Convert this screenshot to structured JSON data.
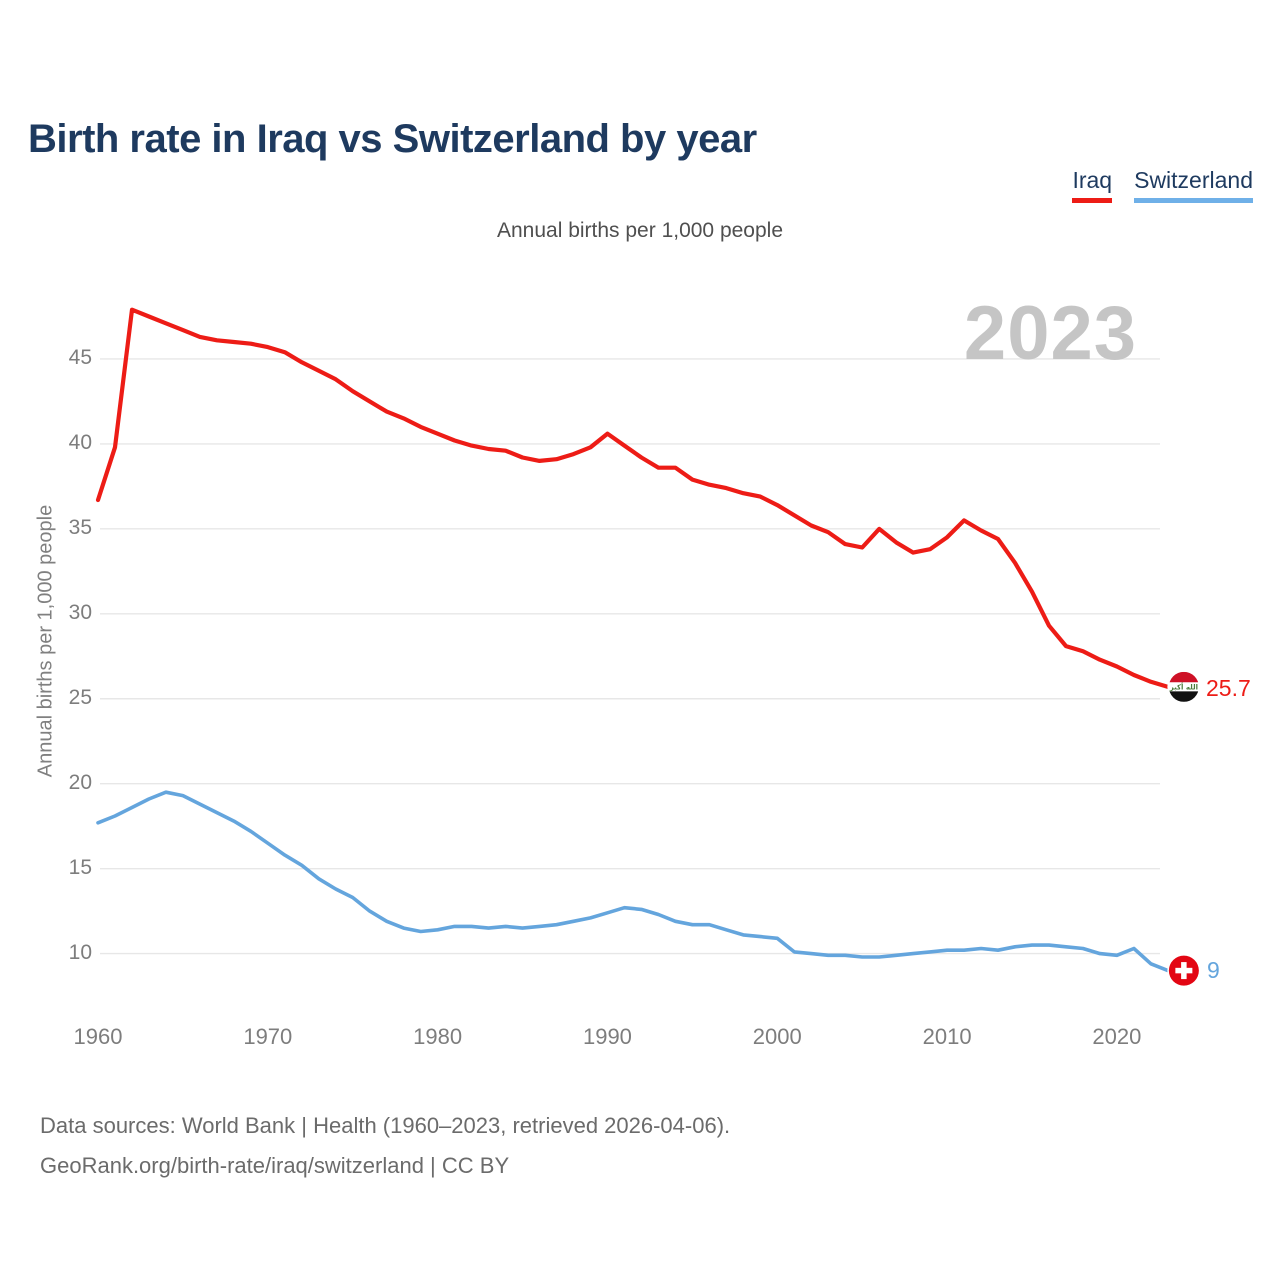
{
  "title": "Birth rate in Iraq vs Switzerland by year",
  "subtitle": "Annual births per 1,000 people",
  "watermark": "2023",
  "y_axis_label": "Annual births per 1,000 people",
  "legend": {
    "items": [
      {
        "label": "Iraq",
        "color": "#ed1c16"
      },
      {
        "label": "Switzerland",
        "color": "#6fb0e8"
      }
    ]
  },
  "footer": {
    "line1": "Data sources: World Bank | Health (1960–2023, retrieved 2026-04-06).",
    "line2": "GeoRank.org/birth-rate/iraq/switzerland | CC BY"
  },
  "colors": {
    "iraq_line": "#ed1c16",
    "switzerland_line": "#64a5dd",
    "grid": "#e7e7e7",
    "title_text": "#1e3a5f",
    "tick_text": "#7d7d7d",
    "watermark_text": "#c5c5c5",
    "iraq_flag_red": "#ce1126",
    "iraq_flag_black": "#111111",
    "iraq_flag_script_green": "#4a7a3a",
    "swiss_flag_red": "#e30613"
  },
  "flag_icons": {
    "iraq_script": "الله أكبر",
    "swiss_cross": "+"
  },
  "chart_data": {
    "type": "line",
    "title": "Birth rate in Iraq vs Switzerland by year",
    "subtitle_note": "Annual births per 1,000 people",
    "ylabel": "Annual births per 1,000 people",
    "grid": true,
    "legend_position": "top-right",
    "xlim": [
      1960,
      2023
    ],
    "ylim": [
      8.5,
      48.5
    ],
    "yticks": [
      10,
      15,
      20,
      25,
      30,
      35,
      40,
      45
    ],
    "xticks": [
      1960,
      1970,
      1980,
      1990,
      2000,
      2010,
      2020
    ],
    "x": [
      1960,
      1961,
      1962,
      1963,
      1964,
      1965,
      1966,
      1967,
      1968,
      1969,
      1970,
      1971,
      1972,
      1973,
      1974,
      1975,
      1976,
      1977,
      1978,
      1979,
      1980,
      1981,
      1982,
      1983,
      1984,
      1985,
      1986,
      1987,
      1988,
      1989,
      1990,
      1991,
      1992,
      1993,
      1994,
      1995,
      1996,
      1997,
      1998,
      1999,
      2000,
      2001,
      2002,
      2003,
      2004,
      2005,
      2006,
      2007,
      2008,
      2009,
      2010,
      2011,
      2012,
      2013,
      2014,
      2015,
      2016,
      2017,
      2018,
      2019,
      2020,
      2021,
      2022,
      2023
    ],
    "series": [
      {
        "name": "Iraq",
        "color": "#ed1c16",
        "stroke_width": 4.2,
        "end_label": "25.7",
        "end_flag": "iraq",
        "values": [
          36.7,
          39.8,
          47.9,
          47.5,
          47.1,
          46.7,
          46.3,
          46.1,
          46.0,
          45.9,
          45.7,
          45.4,
          44.8,
          44.3,
          43.8,
          43.1,
          42.5,
          41.9,
          41.5,
          41.0,
          40.6,
          40.2,
          39.9,
          39.7,
          39.6,
          39.2,
          39.0,
          39.1,
          39.4,
          39.8,
          40.6,
          39.9,
          39.2,
          38.6,
          38.6,
          37.9,
          37.6,
          37.4,
          37.1,
          36.9,
          36.4,
          35.8,
          35.2,
          34.8,
          34.1,
          33.9,
          35.0,
          34.2,
          33.6,
          33.8,
          34.5,
          35.5,
          34.9,
          34.4,
          33.0,
          31.3,
          29.3,
          28.1,
          27.8,
          27.3,
          26.9,
          26.4,
          26.0,
          25.7
        ]
      },
      {
        "name": "Switzerland",
        "color": "#64a5dd",
        "stroke_width": 3.6,
        "end_label": "9",
        "end_flag": "switzerland",
        "values": [
          17.7,
          18.1,
          18.6,
          19.1,
          19.5,
          19.3,
          18.8,
          18.3,
          17.8,
          17.2,
          16.5,
          15.8,
          15.2,
          14.4,
          13.8,
          13.3,
          12.5,
          11.9,
          11.5,
          11.3,
          11.4,
          11.6,
          11.6,
          11.5,
          11.6,
          11.5,
          11.6,
          11.7,
          11.9,
          12.1,
          12.4,
          12.7,
          12.6,
          12.3,
          11.9,
          11.7,
          11.7,
          11.4,
          11.1,
          11.0,
          10.9,
          10.1,
          10.0,
          9.9,
          9.9,
          9.8,
          9.8,
          9.9,
          10.0,
          10.1,
          10.2,
          10.2,
          10.3,
          10.2,
          10.4,
          10.5,
          10.5,
          10.4,
          10.3,
          10.0,
          9.9,
          10.3,
          9.4,
          9.0
        ]
      }
    ]
  }
}
